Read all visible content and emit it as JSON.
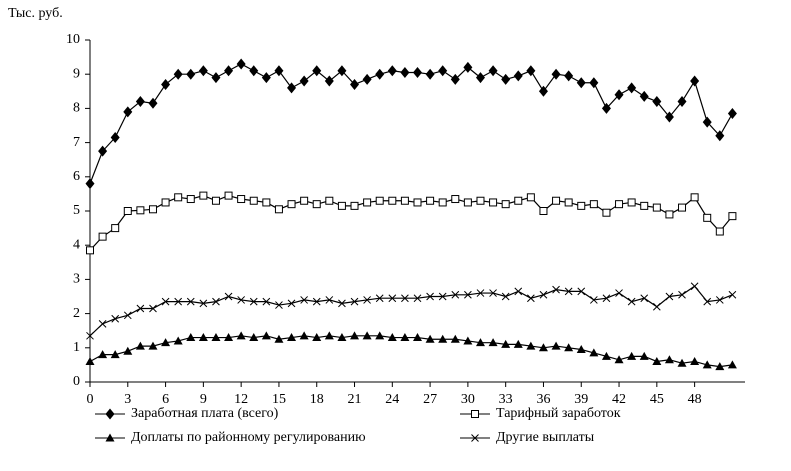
{
  "chart_data": {
    "type": "line",
    "ylabel": "Тыс. руб.",
    "x": [
      0,
      1,
      2,
      3,
      4,
      5,
      6,
      7,
      8,
      9,
      10,
      11,
      12,
      13,
      14,
      15,
      16,
      17,
      18,
      19,
      20,
      21,
      22,
      23,
      24,
      25,
      26,
      27,
      28,
      29,
      30,
      31,
      32,
      33,
      34,
      35,
      36,
      37,
      38,
      39,
      40,
      41,
      42,
      43,
      44,
      45,
      46,
      47,
      48,
      49,
      50,
      51
    ],
    "xlim": [
      0,
      52
    ],
    "xticks": [
      0,
      3,
      6,
      9,
      12,
      15,
      18,
      21,
      24,
      27,
      30,
      33,
      36,
      39,
      42,
      45,
      48
    ],
    "ylim": [
      0,
      10
    ],
    "yticks": [
      0,
      1,
      2,
      3,
      4,
      5,
      6,
      7,
      8,
      9,
      10
    ],
    "grid": false,
    "series": [
      {
        "name": "Заработная плата (всего)",
        "color": "#000000",
        "marker": "diamond",
        "values": [
          5.8,
          6.75,
          7.15,
          7.9,
          8.2,
          8.15,
          8.7,
          9.0,
          9.0,
          9.1,
          8.9,
          9.1,
          9.3,
          9.1,
          8.9,
          9.1,
          8.6,
          8.8,
          9.1,
          8.8,
          9.1,
          8.7,
          8.85,
          9.0,
          9.1,
          9.05,
          9.05,
          9.0,
          9.1,
          8.85,
          9.2,
          8.9,
          9.1,
          8.85,
          8.95,
          9.1,
          8.5,
          9.0,
          8.95,
          8.75,
          8.75,
          8.0,
          8.4,
          8.6,
          8.35,
          8.2,
          7.75,
          8.2,
          8.8,
          7.6,
          7.2,
          7.85
        ]
      },
      {
        "name": "Тарифный заработок",
        "color": "#000000",
        "marker": "square",
        "values": [
          3.85,
          4.25,
          4.5,
          5.0,
          5.02,
          5.05,
          5.25,
          5.4,
          5.35,
          5.45,
          5.3,
          5.45,
          5.35,
          5.3,
          5.25,
          5.05,
          5.2,
          5.3,
          5.2,
          5.3,
          5.15,
          5.15,
          5.25,
          5.3,
          5.3,
          5.3,
          5.25,
          5.3,
          5.25,
          5.35,
          5.25,
          5.3,
          5.25,
          5.2,
          5.3,
          5.4,
          5.0,
          5.3,
          5.25,
          5.15,
          5.2,
          4.95,
          5.2,
          5.25,
          5.15,
          5.1,
          4.9,
          5.1,
          5.4,
          4.8,
          4.4,
          4.85
        ]
      },
      {
        "name": "Доплаты по районному регулированию",
        "color": "#000000",
        "marker": "triangle",
        "values": [
          0.6,
          0.8,
          0.8,
          0.9,
          1.05,
          1.05,
          1.15,
          1.2,
          1.3,
          1.3,
          1.3,
          1.3,
          1.35,
          1.3,
          1.35,
          1.25,
          1.3,
          1.35,
          1.3,
          1.35,
          1.3,
          1.35,
          1.35,
          1.35,
          1.3,
          1.3,
          1.3,
          1.25,
          1.25,
          1.25,
          1.2,
          1.15,
          1.15,
          1.1,
          1.1,
          1.05,
          1.0,
          1.05,
          1.0,
          0.95,
          0.85,
          0.75,
          0.65,
          0.75,
          0.75,
          0.6,
          0.65,
          0.55,
          0.6,
          0.5,
          0.45,
          0.5
        ]
      },
      {
        "name": "Другие выплаты",
        "color": "#000000",
        "marker": "cross",
        "values": [
          1.35,
          1.7,
          1.85,
          1.95,
          2.15,
          2.15,
          2.35,
          2.35,
          2.35,
          2.3,
          2.35,
          2.5,
          2.4,
          2.35,
          2.35,
          2.25,
          2.3,
          2.4,
          2.35,
          2.4,
          2.3,
          2.35,
          2.4,
          2.45,
          2.45,
          2.45,
          2.45,
          2.5,
          2.5,
          2.55,
          2.55,
          2.6,
          2.6,
          2.5,
          2.65,
          2.45,
          2.55,
          2.7,
          2.65,
          2.65,
          2.4,
          2.45,
          2.6,
          2.35,
          2.45,
          2.2,
          2.5,
          2.55,
          2.8,
          2.35,
          2.4,
          2.55
        ]
      }
    ]
  }
}
